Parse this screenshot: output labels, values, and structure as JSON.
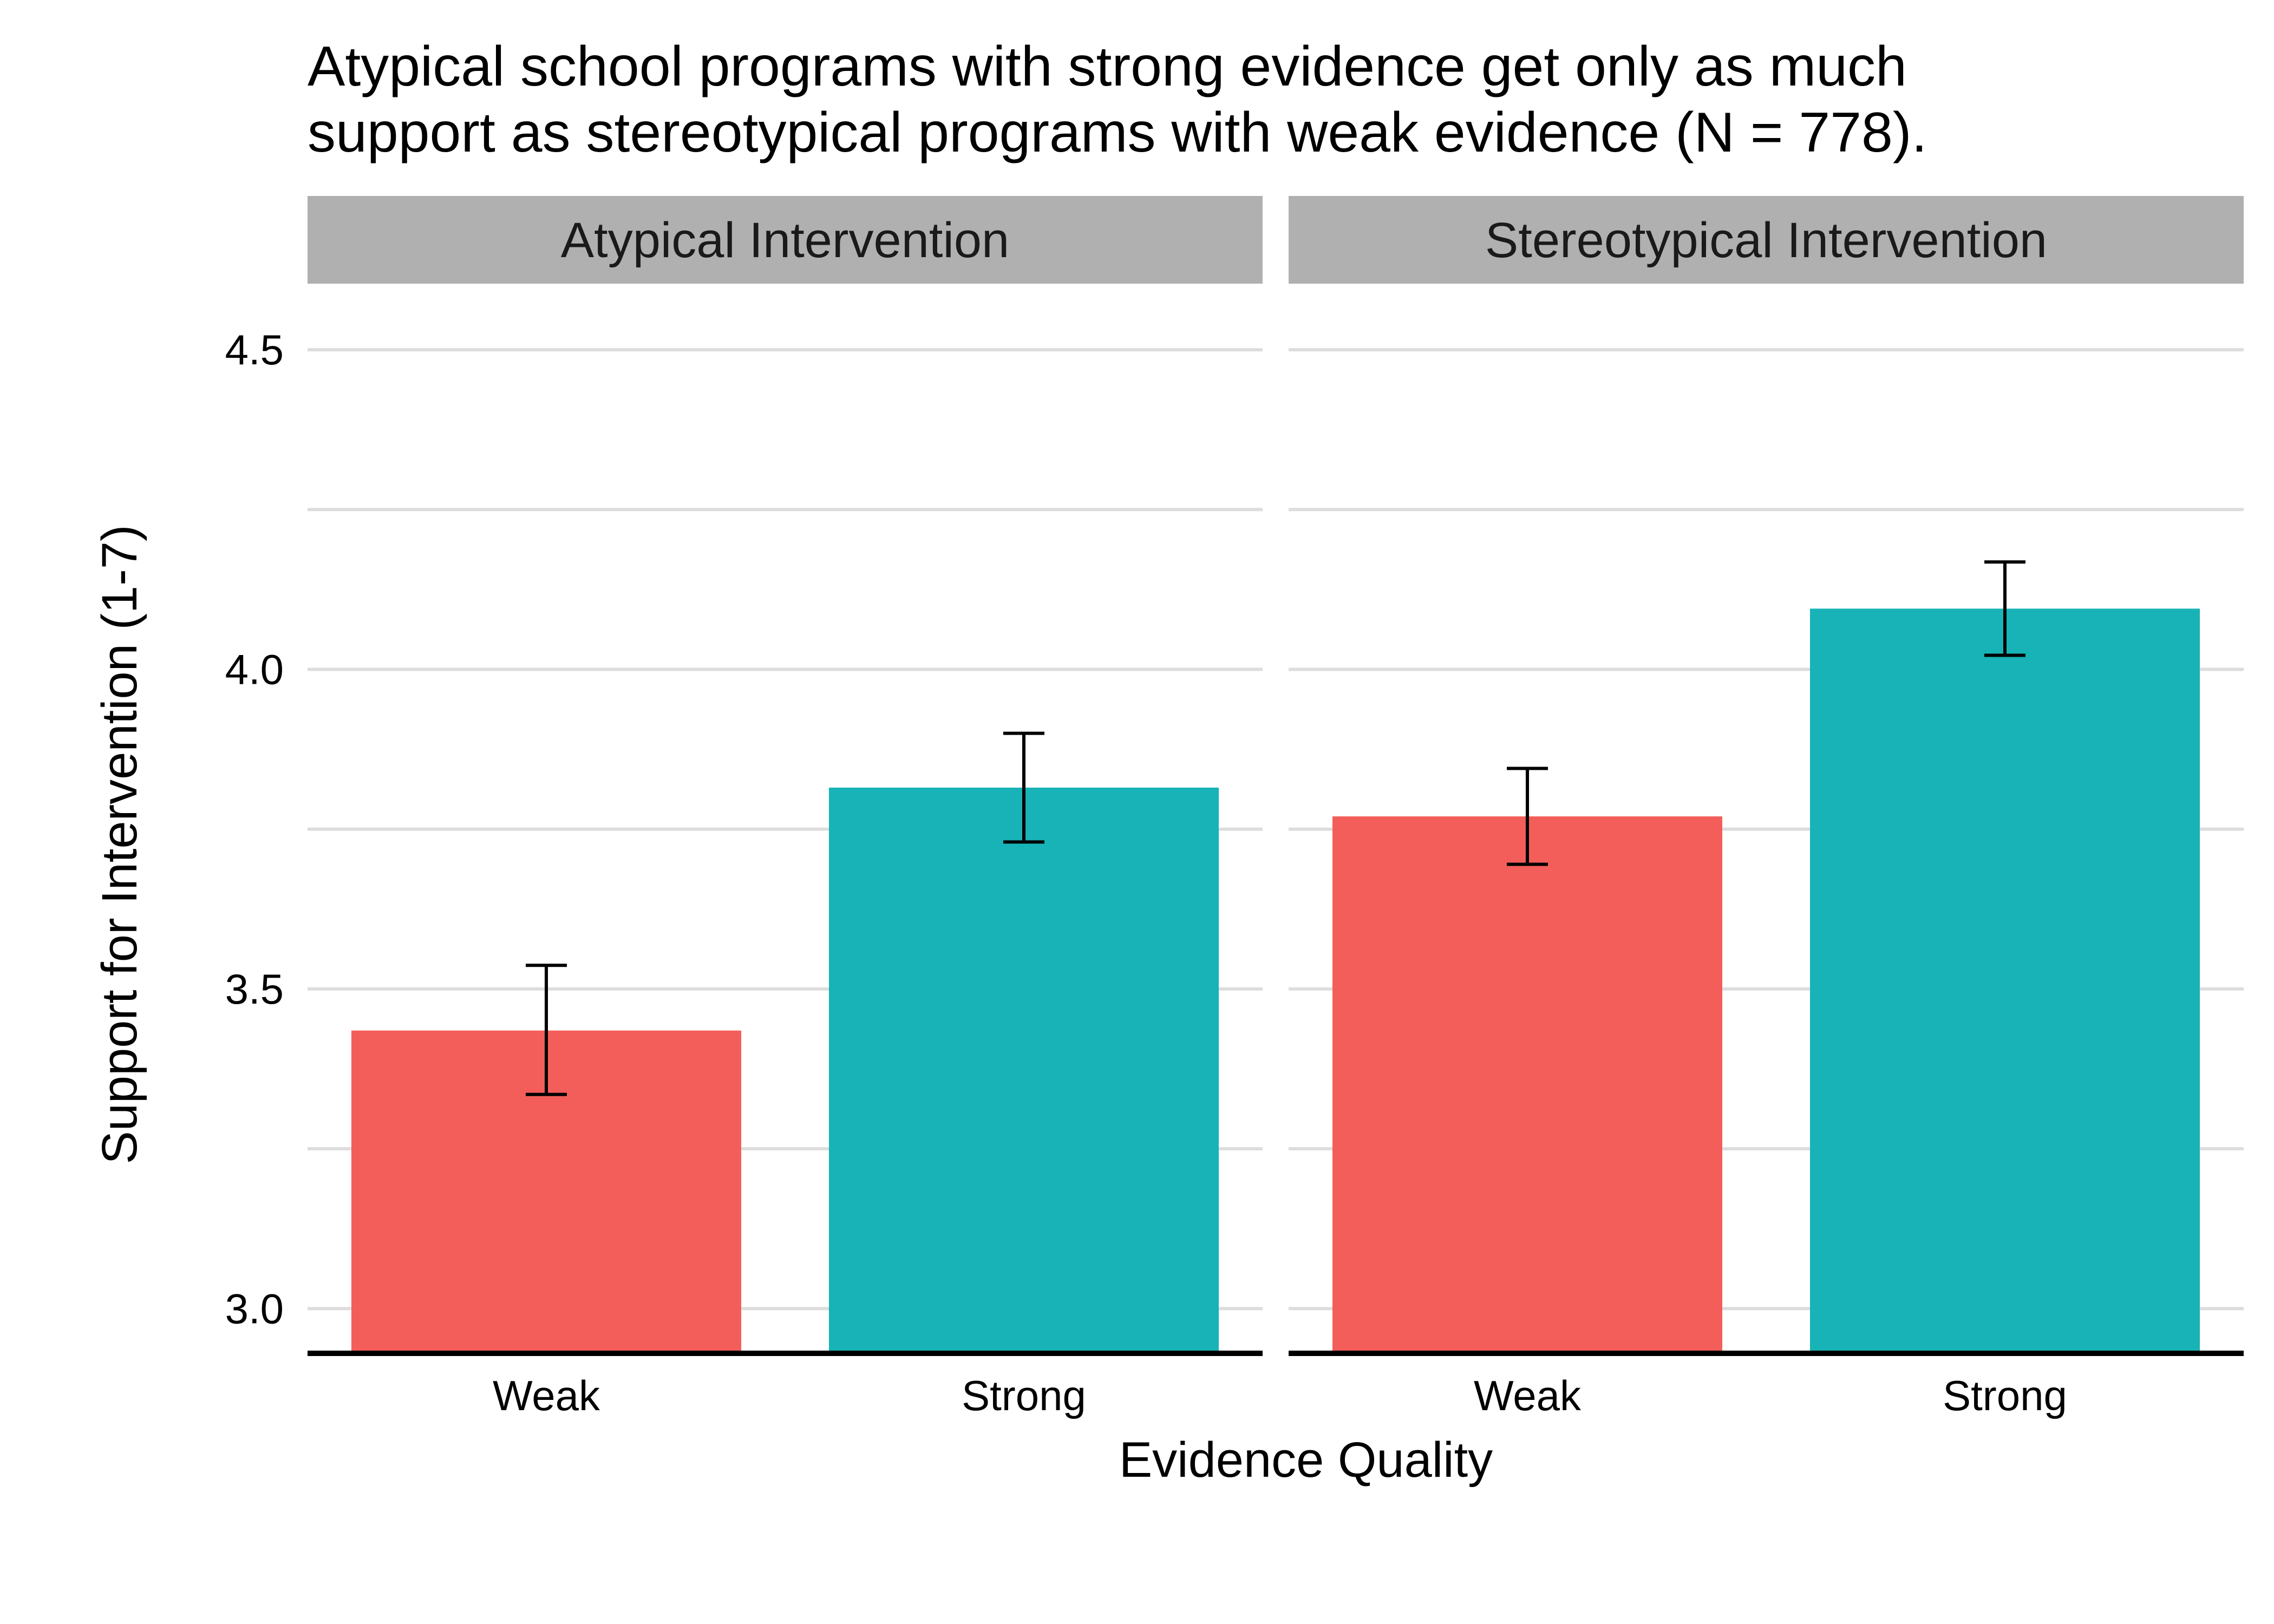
{
  "chart_data": {
    "type": "bar",
    "title_lines": [
      "Atypical school programs with strong evidence get only as much",
      "support as stereotypical programs with weak evidence (N = 778)."
    ],
    "xlabel": "Evidence Quality",
    "ylabel": "Support for Intervention (1-7)",
    "ylim": [
      2.93,
      4.6
    ],
    "y_ticks": [
      3.0,
      3.5,
      4.0,
      4.5
    ],
    "y_tick_labels": [
      "3.0",
      "3.5",
      "4.0",
      "4.5"
    ],
    "grid": true,
    "categories": [
      "Weak",
      "Strong"
    ],
    "colors": {
      "Weak": "#F35E5A",
      "Strong": "#17B3B7",
      "strip": "#B0B0B0",
      "grid": "#DDDDDD",
      "axis": "#000000"
    },
    "panels": [
      {
        "label": "Atypical Intervention",
        "bars": [
          {
            "category": "Weak",
            "value": 3.435,
            "ci_low": 3.335,
            "ci_high": 3.537
          },
          {
            "category": "Strong",
            "value": 3.815,
            "ci_low": 3.73,
            "ci_high": 3.9
          }
        ]
      },
      {
        "label": "Stereotypical Intervention",
        "bars": [
          {
            "category": "Weak",
            "value": 3.77,
            "ci_low": 3.695,
            "ci_high": 3.845
          },
          {
            "category": "Strong",
            "value": 4.095,
            "ci_low": 4.022,
            "ci_high": 4.168
          }
        ]
      }
    ]
  }
}
